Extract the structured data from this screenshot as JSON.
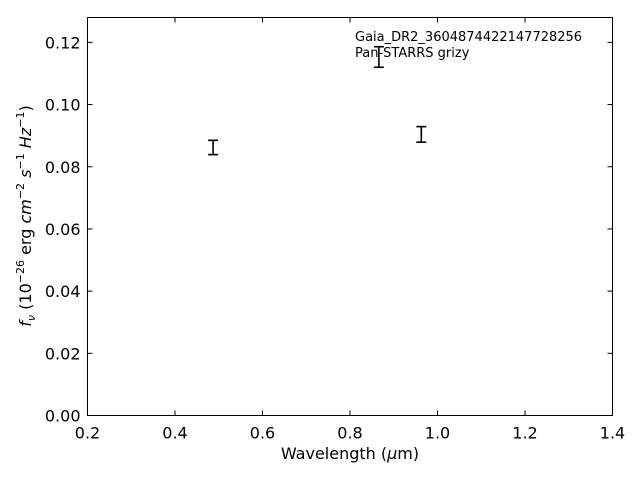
{
  "chart_data": {
    "type": "scatter",
    "title": "",
    "xlabel": "Wavelength (μm)",
    "ylabel": "f_ν (10^-26 erg cm^-2 s^-1 Hz^-1)",
    "xlim": [
      0.2,
      1.4
    ],
    "ylim": [
      0.0,
      0.128
    ],
    "xticks": [
      0.2,
      0.4,
      0.6,
      0.8,
      1.0,
      1.2,
      1.4
    ],
    "xtick_labels": [
      "0.2",
      "0.4",
      "0.6",
      "0.8",
      "1.0",
      "1.2",
      "1.4"
    ],
    "yticks": [
      0.0,
      0.02,
      0.04,
      0.06,
      0.08,
      0.1,
      0.12
    ],
    "ytick_labels": [
      "0.00",
      "0.02",
      "0.04",
      "0.06",
      "0.08",
      "0.10",
      "0.12"
    ],
    "grid": false,
    "annotations": [
      "Gaia_DR2_3604874422147728256",
      "Pan-STARRS grizy"
    ],
    "points": [
      {
        "x": 0.487,
        "y": 0.0862,
        "yerr": 0.0023
      },
      {
        "x": 0.866,
        "y": 0.1153,
        "yerr": 0.0033
      },
      {
        "x": 0.963,
        "y": 0.0904,
        "yerr": 0.0025
      }
    ],
    "marker_color": "#000000"
  }
}
